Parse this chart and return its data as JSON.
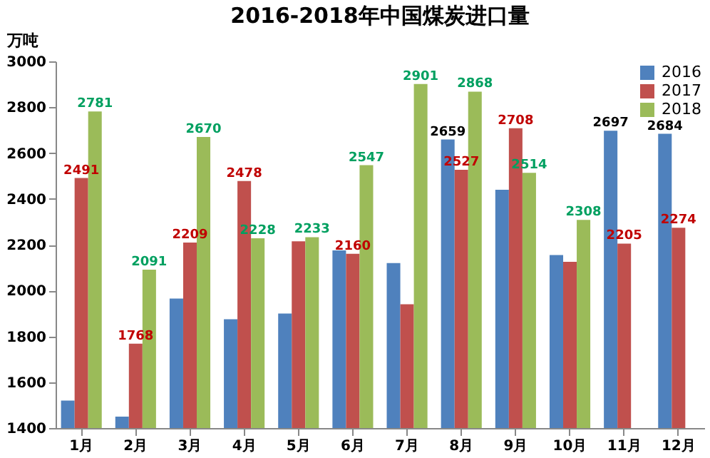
{
  "chart_data": {
    "type": "bar",
    "title": "2016-2018年中国煤炭进口量",
    "ylabel": "万吨",
    "categories": [
      "1月",
      "2月",
      "3月",
      "4月",
      "5月",
      "6月",
      "7月",
      "8月",
      "9月",
      "10月",
      "11月",
      "12月"
    ],
    "series": [
      {
        "name": "2016",
        "color": "#4f81bd",
        "values": [
          1520,
          1450,
          1965,
          1875,
          1900,
          2175,
          2120,
          2659,
          2440,
          2155,
          2697,
          2684
        ],
        "value_labels": [
          null,
          null,
          null,
          null,
          null,
          null,
          null,
          "2659",
          null,
          null,
          "2697",
          "2684"
        ]
      },
      {
        "name": "2017",
        "color": "#c0504d",
        "values": [
          2491,
          1768,
          2209,
          2478,
          2215,
          2160,
          1940,
          2527,
          2708,
          2125,
          2205,
          2274
        ],
        "value_labels": [
          "2491",
          "1768",
          "2209",
          "2478",
          null,
          "2160",
          null,
          "2527",
          "2708",
          null,
          "2205",
          "2274"
        ]
      },
      {
        "name": "2018",
        "color": "#9bbb59",
        "values": [
          2781,
          2091,
          2670,
          2228,
          2233,
          2547,
          2901,
          2868,
          2514,
          2308,
          null,
          null
        ],
        "value_labels": [
          "2781",
          "2091",
          "2670",
          "2228",
          "2233",
          "2547",
          "2901",
          "2868",
          "2514",
          "2308",
          null,
          null
        ]
      }
    ],
    "ylim": [
      1400,
      3000
    ],
    "yticks": [
      1400,
      1600,
      1800,
      2000,
      2200,
      2400,
      2600,
      2800,
      3000
    ],
    "grid": false,
    "legend": "top right"
  }
}
